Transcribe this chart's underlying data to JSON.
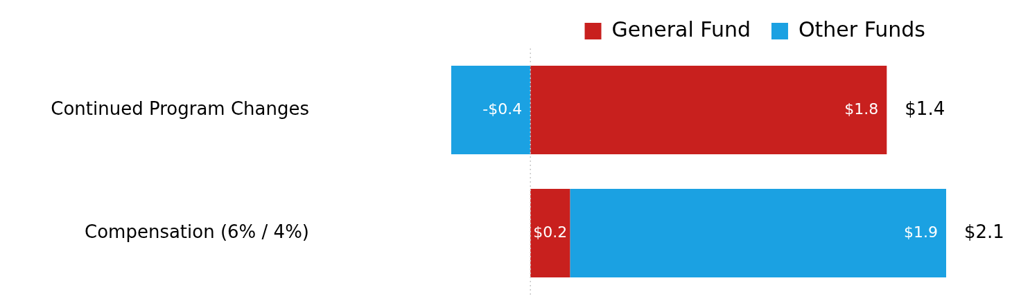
{
  "chart_data": {
    "type": "bar",
    "orientation": "horizontal",
    "stacked": true,
    "categories": [
      "Continued Program Changes",
      "Compensation (6% / 4%)"
    ],
    "series": [
      {
        "name": "General Fund",
        "color": "#c8201e",
        "values": [
          1.8,
          0.2
        ],
        "value_labels": [
          "$1.8",
          "$0.2"
        ]
      },
      {
        "name": "Other Funds",
        "color": "#1ba1e2",
        "values": [
          -0.4,
          1.9
        ],
        "value_labels": [
          "-$0.4",
          "$1.9"
        ]
      }
    ],
    "totals": [
      "$1.4",
      "$2.1"
    ],
    "xlim": [
      -0.4,
      2.1
    ],
    "ref_lines": [
      {
        "axis": "x",
        "value": 0,
        "color": "#c8c8c8",
        "line_style": "dotted"
      }
    ],
    "tick_labels": "y",
    "legend": "top"
  }
}
